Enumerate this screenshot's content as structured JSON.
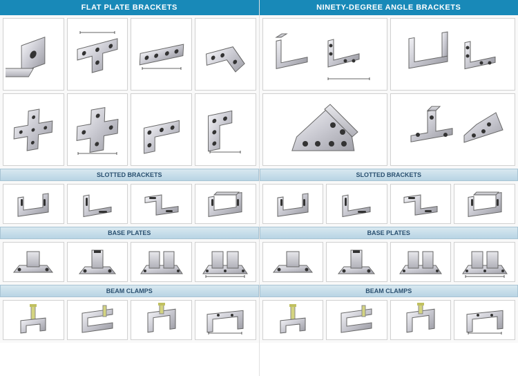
{
  "columns": [
    {
      "main_header": "FLAT PLATE BRACKETS",
      "main_grid": {
        "layout": "4x2",
        "cells": [
          {
            "part_type": "square-plate",
            "label": "flat-square"
          },
          {
            "part_type": "tee-plate",
            "label": "flat-tee"
          },
          {
            "part_type": "straight-plate",
            "label": "flat-straight-4hole"
          },
          {
            "part_type": "angle-plate-flat",
            "label": "flat-angle"
          },
          {
            "part_type": "cross-plate",
            "label": "flat-cross"
          },
          {
            "part_type": "cross-plate-large",
            "label": "flat-cross-large"
          },
          {
            "part_type": "l-plate",
            "label": "flat-l-plate"
          },
          {
            "part_type": "corner-plate",
            "label": "flat-corner"
          }
        ]
      }
    },
    {
      "main_header": "NINETY-DEGREE ANGLE BRACKETS",
      "main_grid": {
        "layout": "2x2",
        "cells": [
          {
            "part_type": "angle-bracket-group",
            "label": "angle-90-set"
          },
          {
            "part_type": "angle-bracket-double",
            "label": "angle-90-double"
          },
          {
            "part_type": "angle-bracket-large",
            "label": "angle-90-large"
          },
          {
            "part_type": "angle-tee-bracket",
            "label": "angle-tee-gusset"
          }
        ]
      }
    }
  ],
  "subsections": [
    {
      "title": "SLOTTED BRACKETS",
      "cells": [
        {
          "part_type": "slotted-u",
          "label": "slotted-1"
        },
        {
          "part_type": "slotted-angle",
          "label": "slotted-2"
        },
        {
          "part_type": "slotted-z",
          "label": "slotted-3"
        },
        {
          "part_type": "slotted-double",
          "label": "slotted-4"
        }
      ]
    },
    {
      "title": "BASE PLATES",
      "cells": [
        {
          "part_type": "base-single",
          "label": "base-1"
        },
        {
          "part_type": "base-single-tall",
          "label": "base-2"
        },
        {
          "part_type": "base-double",
          "label": "base-3"
        },
        {
          "part_type": "base-double-wide",
          "label": "base-4"
        }
      ]
    },
    {
      "title": "BEAM CLAMPS",
      "cells": [
        {
          "part_type": "clamp-bolt",
          "label": "clamp-1"
        },
        {
          "part_type": "clamp-c",
          "label": "clamp-2"
        },
        {
          "part_type": "clamp-c-bolt",
          "label": "clamp-3"
        },
        {
          "part_type": "clamp-wide",
          "label": "clamp-4"
        }
      ]
    }
  ],
  "colors": {
    "header_bg": "#1889b8",
    "header_text": "#ffffff",
    "sub_bg_top": "#d8e8f0",
    "sub_bg_bottom": "#b8d4e4",
    "sub_text": "#2a5070",
    "cell_border": "#d0d0d0",
    "metal_light": "#e8e8ec",
    "metal_dark": "#a8a8b0"
  }
}
